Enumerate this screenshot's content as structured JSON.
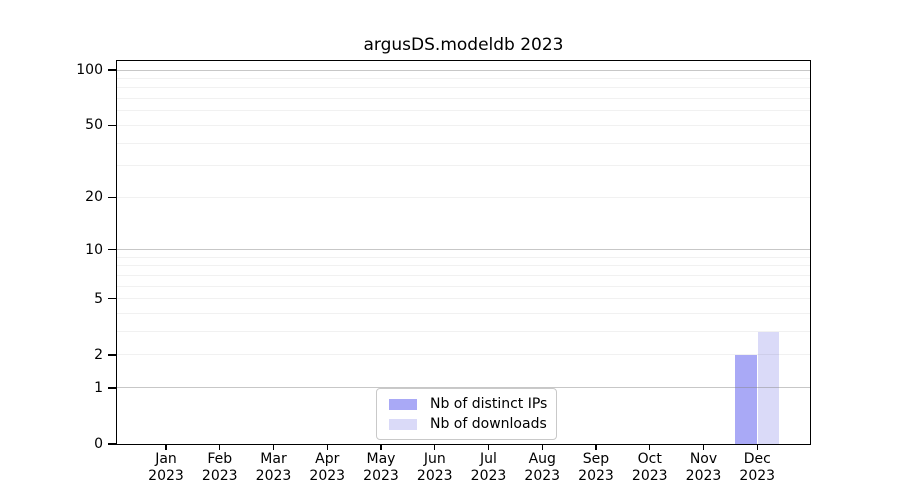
{
  "window": {
    "background": "#ffffff"
  },
  "chart_data": {
    "type": "bar",
    "title": "argusDS.modeldb 2023",
    "x_months": [
      "Jan",
      "Feb",
      "Mar",
      "Apr",
      "May",
      "Jun",
      "Jul",
      "Aug",
      "Sep",
      "Oct",
      "Nov",
      "Dec"
    ],
    "x_year": "2023",
    "series": [
      {
        "name": "Nb of distinct IPs",
        "color": "#a9a9f6",
        "values": [
          0,
          0,
          0,
          0,
          0,
          0,
          0,
          0,
          0,
          0,
          0,
          2
        ]
      },
      {
        "name": "Nb of downloads",
        "color": "#dadaf8",
        "values": [
          0,
          0,
          0,
          0,
          0,
          0,
          0,
          0,
          0,
          0,
          0,
          3
        ]
      }
    ],
    "y_axis": {
      "scale": "log1p",
      "tick_values": [
        0,
        1,
        2,
        5,
        10,
        20,
        50,
        100
      ],
      "major_grid_values": [
        1,
        10,
        100
      ],
      "minor_grid_values": [
        2,
        3,
        4,
        5,
        6,
        7,
        8,
        9,
        20,
        30,
        40,
        50,
        60,
        70,
        80,
        90
      ],
      "max_value": 100,
      "ylim": [
        0,
        112
      ]
    },
    "legend": {
      "position": "lower center"
    },
    "grid": true
  }
}
